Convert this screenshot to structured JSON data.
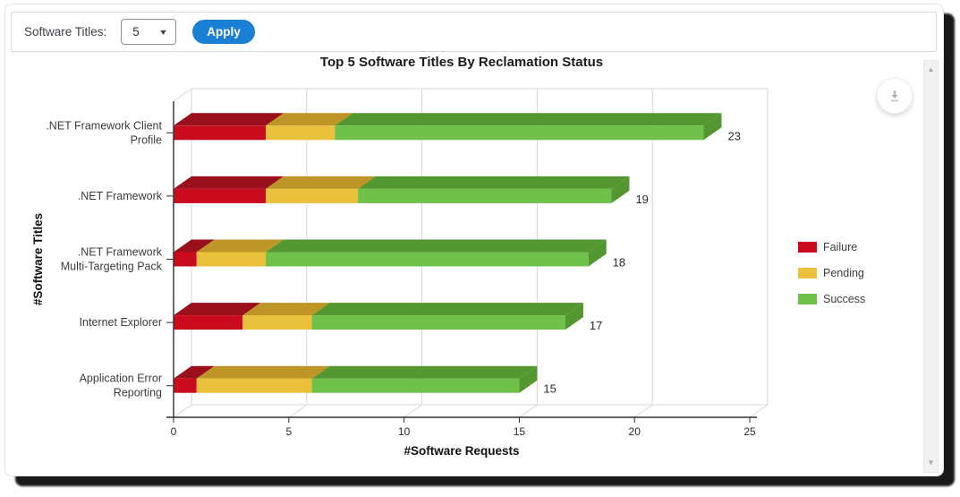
{
  "toolbar": {
    "label": "Software Titles:",
    "dropdown_value": "5",
    "apply_label": "Apply"
  },
  "icons": {
    "dropdown_caret": "chevron-down",
    "download": "download-arrow",
    "scroll_up": "triangle-up",
    "scroll_down": "triangle-down"
  },
  "colors": {
    "apply_button": "#1a7fd5",
    "grid_line": "#d7d7d7",
    "axis_line": "#303030",
    "text_dark": "#2a2a2a",
    "category_text": "#3c3c3c"
  },
  "chart_data": {
    "type": "bar",
    "variant": "horizontal-stacked-3d",
    "title": "Top 5 Software Titles By Reclamation Status",
    "xlabel": "#Software Requests",
    "ylabel": "#Software Titles",
    "xlim": [
      0,
      25
    ],
    "xticks": [
      0,
      5,
      10,
      15,
      20,
      25
    ],
    "grid": true,
    "legend_position": "right",
    "categories": [
      ".NET Framework Client Profile",
      ".NET Framework",
      ".NET Framework Multi-Targeting Pack",
      "Internet Explorer",
      "Application Error Reporting"
    ],
    "category_label_lines": [
      [
        ".NET Framework Client",
        "Profile"
      ],
      [
        ".NET Framework"
      ],
      [
        ".NET Framework",
        "Multi-Targeting Pack"
      ],
      [
        "Internet Explorer"
      ],
      [
        "Application Error",
        "Reporting"
      ]
    ],
    "series": [
      {
        "name": "Failure",
        "color": "#ca0b1e",
        "top_color": "#990f1b",
        "values": [
          4,
          4,
          1,
          3,
          1
        ]
      },
      {
        "name": "Pending",
        "color": "#e9c13c",
        "top_color": "#bd9627",
        "values": [
          3,
          4,
          3,
          3,
          5
        ]
      },
      {
        "name": "Success",
        "color": "#6fc14a",
        "top_color": "#549730",
        "values": [
          16,
          11,
          14,
          11,
          9
        ]
      }
    ],
    "totals": [
      23,
      19,
      18,
      17,
      15
    ]
  }
}
